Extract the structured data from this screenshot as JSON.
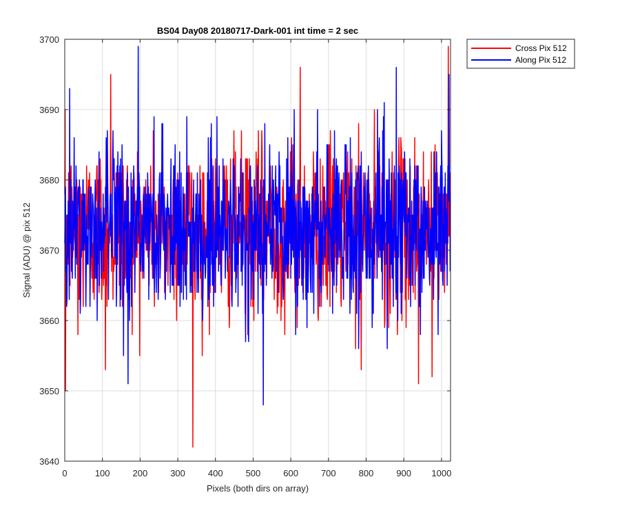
{
  "chart_data": {
    "type": "line",
    "title": "BS04 Day08 20180717-Dark-001 int time = 2 sec",
    "xlabel": "Pixels (both dirs on array)",
    "ylabel": "Signal (ADU) @ pix 512",
    "xlim": [
      0,
      1024
    ],
    "ylim": [
      3640,
      3700
    ],
    "xticks": [
      0,
      100,
      200,
      300,
      400,
      500,
      600,
      700,
      800,
      900,
      1000
    ],
    "yticks": [
      3640,
      3650,
      3660,
      3670,
      3680,
      3690,
      3700
    ],
    "grid": true,
    "legend_position": "outside-top-right",
    "series": [
      {
        "name": "Cross Pix 512",
        "color": "#ff0000",
        "mean": 3673,
        "noise_std": 6,
        "x_start": 0,
        "x_end": 1023,
        "features": [
          {
            "x": 0,
            "y": 3678
          },
          {
            "x": 2,
            "y": 3650
          },
          {
            "x": 35,
            "y": 3658
          },
          {
            "x": 108,
            "y": 3653
          },
          {
            "x": 122,
            "y": 3695
          },
          {
            "x": 340,
            "y": 3642
          },
          {
            "x": 625,
            "y": 3696
          },
          {
            "x": 787,
            "y": 3653
          },
          {
            "x": 939,
            "y": 3651
          },
          {
            "x": 975,
            "y": 3652
          },
          {
            "x": 1018,
            "y": 3699
          }
        ]
      },
      {
        "name": "Along Pix 512",
        "color": "#0000ff",
        "mean": 3673,
        "noise_std": 6,
        "x_start": 0,
        "x_end": 1023,
        "features": [
          {
            "x": 13,
            "y": 3693
          },
          {
            "x": 168,
            "y": 3651
          },
          {
            "x": 195,
            "y": 3699
          },
          {
            "x": 527,
            "y": 3648
          },
          {
            "x": 880,
            "y": 3696
          },
          {
            "x": 1020,
            "y": 3695
          }
        ]
      }
    ]
  }
}
